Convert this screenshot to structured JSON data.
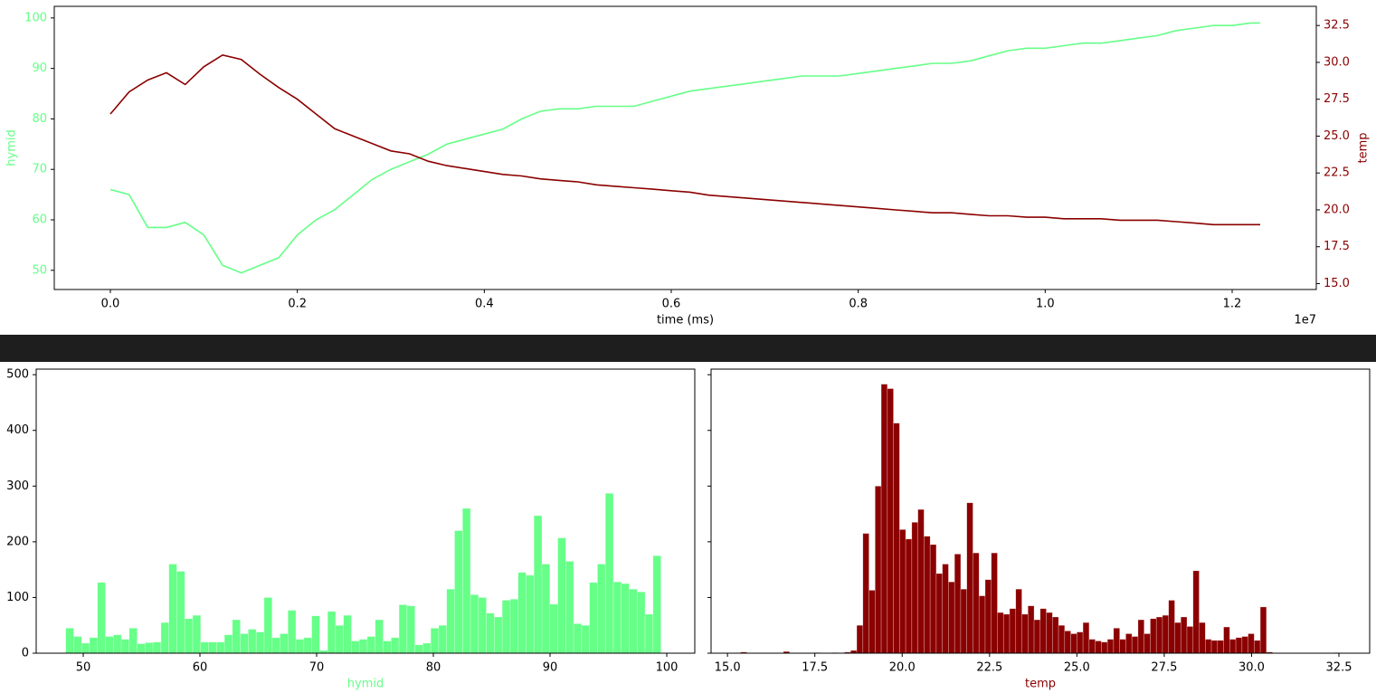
{
  "chart_data": [
    {
      "type": "line",
      "xlabel": "time (ms)",
      "ylabel": "hymid",
      "y2label": "temp",
      "x_offset_label": "1e7",
      "ycolor": "#66ff88",
      "y2color": "#8b0000",
      "x": [
        0,
        200000,
        400000,
        600000,
        800000,
        1000000,
        1200000,
        1400000,
        1600000,
        1800000,
        2000000,
        2200000,
        2400000,
        2600000,
        2800000,
        3000000,
        3200000,
        3400000,
        3600000,
        3800000,
        4000000,
        4200000,
        4400000,
        4600000,
        4800000,
        5000000,
        5200000,
        5400000,
        5600000,
        5800000,
        6000000,
        6200000,
        6400000,
        6600000,
        6800000,
        7000000,
        7200000,
        7400000,
        7600000,
        7800000,
        8000000,
        8200000,
        8400000,
        8600000,
        8800000,
        9000000,
        9200000,
        9400000,
        9600000,
        9800000,
        10000000,
        10200000,
        10400000,
        10600000,
        10800000,
        11000000,
        11200000,
        11400000,
        11600000,
        11800000,
        12000000,
        12200000,
        12300000
      ],
      "series": [
        {
          "color": "#66ff88",
          "axis": "y",
          "values": [
            66,
            65,
            58.5,
            58.5,
            59.5,
            57,
            51,
            49.5,
            51,
            52.5,
            57,
            60,
            62,
            65,
            68,
            70,
            71.5,
            73,
            75,
            76,
            77,
            78,
            80,
            81.5,
            82,
            82,
            82.5,
            82.5,
            82.5,
            83.5,
            84.5,
            85.5,
            86,
            86.5,
            87,
            87.5,
            88,
            88.5,
            88.5,
            88.5,
            89,
            89.5,
            90,
            90.5,
            91,
            91,
            91.5,
            92.5,
            93.5,
            94,
            94,
            94.5,
            95,
            95,
            95.5,
            96,
            96.5,
            97.5,
            98,
            98.5,
            98.5,
            99,
            99
          ]
        },
        {
          "color": "#8b0000",
          "axis": "y2",
          "values": [
            26.5,
            28,
            28.8,
            29.3,
            28.5,
            29.7,
            30.5,
            30.2,
            29.2,
            28.3,
            27.5,
            26.5,
            25.5,
            25,
            24.5,
            24,
            23.8,
            23.3,
            23,
            22.8,
            22.6,
            22.4,
            22.3,
            22.1,
            22,
            21.9,
            21.7,
            21.6,
            21.5,
            21.4,
            21.3,
            21.2,
            21,
            20.9,
            20.8,
            20.7,
            20.6,
            20.5,
            20.4,
            20.3,
            20.2,
            20.1,
            20,
            19.9,
            19.8,
            19.8,
            19.7,
            19.6,
            19.6,
            19.5,
            19.5,
            19.4,
            19.4,
            19.4,
            19.3,
            19.3,
            19.3,
            19.2,
            19.1,
            19,
            19,
            19,
            19
          ]
        }
      ],
      "xlim": [
        -600000,
        12900000
      ],
      "xticks": [
        {
          "value": 0,
          "label": "0.0"
        },
        {
          "value": 2000000,
          "label": "0.2"
        },
        {
          "value": 4000000,
          "label": "0.4"
        },
        {
          "value": 6000000,
          "label": "0.6"
        },
        {
          "value": 8000000,
          "label": "0.8"
        },
        {
          "value": 10000000,
          "label": "1.0"
        },
        {
          "value": 12000000,
          "label": "1.2"
        }
      ],
      "ylim": [
        46.2,
        102.3
      ],
      "yticks": [
        50,
        60,
        70,
        80,
        90,
        100
      ],
      "y2lim": [
        14.6,
        33.8
      ],
      "y2ticks": [
        {
          "value": 15,
          "label": "15.0"
        },
        {
          "value": 17.5,
          "label": "17.5"
        },
        {
          "value": 20,
          "label": "20.0"
        },
        {
          "value": 22.5,
          "label": "22.5"
        },
        {
          "value": 25,
          "label": "25.0"
        },
        {
          "value": 27.5,
          "label": "27.5"
        },
        {
          "value": 30,
          "label": "30.0"
        },
        {
          "value": 32.5,
          "label": "32.5"
        }
      ]
    },
    {
      "type": "histogram",
      "xlabel": "hymid",
      "color": "#66ff88",
      "ytick_labels": true,
      "bins": [
        48.5,
        49.18,
        49.86,
        50.54,
        51.22,
        51.9,
        52.58,
        53.26,
        53.94,
        54.62,
        55.3,
        55.98,
        56.66,
        57.34,
        58.02,
        58.7,
        59.38,
        60.06,
        60.74,
        61.42,
        62.1,
        62.78,
        63.46,
        64.14,
        64.82,
        65.5,
        66.18,
        66.86,
        67.54,
        68.22,
        68.9,
        69.58,
        70.26,
        70.94,
        71.62,
        72.3,
        72.98,
        73.66,
        74.34,
        75.02,
        75.7,
        76.38,
        77.06,
        77.74,
        78.42,
        79.1,
        79.78,
        80.46,
        81.14,
        81.82,
        82.5,
        83.18,
        83.86,
        84.54,
        85.22,
        85.9,
        86.58,
        87.26,
        87.94,
        88.62,
        89.3,
        89.98,
        90.66,
        91.34,
        92.02,
        92.7,
        93.38,
        94.06,
        94.74,
        95.42,
        96.1,
        96.78,
        97.46,
        98.14,
        98.82,
        99.5
      ],
      "values": [
        45,
        30,
        18,
        28,
        127,
        30,
        33,
        25,
        45,
        17,
        19,
        20,
        55,
        160,
        147,
        62,
        68,
        20,
        20,
        20,
        33,
        60,
        35,
        43,
        38,
        100,
        28,
        35,
        77,
        25,
        28,
        67,
        5,
        75,
        50,
        68,
        22,
        25,
        30,
        60,
        22,
        28,
        87,
        85,
        15,
        18,
        45,
        50,
        115,
        220,
        260,
        105,
        100,
        72,
        65,
        95,
        97,
        145,
        140,
        247,
        160,
        88,
        207,
        165,
        53,
        50,
        127,
        160,
        287,
        128,
        125,
        115,
        110,
        70,
        175
      ],
      "xlim": [
        45.97,
        102.4
      ],
      "xticks": [
        50,
        60,
        70,
        80,
        90,
        100
      ],
      "ylim": [
        0,
        510
      ],
      "yticks": [
        0,
        100,
        200,
        300,
        400,
        500
      ]
    },
    {
      "type": "histogram",
      "xlabel": "temp",
      "color": "#8b0000",
      "ytick_labels": false,
      "bins": [
        15.2,
        15.375,
        15.55,
        15.725,
        15.9,
        16.075,
        16.25,
        16.425,
        16.6,
        16.775,
        16.95,
        17.125,
        17.3,
        17.475,
        17.65,
        17.825,
        18,
        18.175,
        18.35,
        18.525,
        18.7,
        18.875,
        19.05,
        19.225,
        19.4,
        19.575,
        19.75,
        19.925,
        20.1,
        20.275,
        20.45,
        20.625,
        20.8,
        20.975,
        21.15,
        21.325,
        21.5,
        21.675,
        21.85,
        22.025,
        22.2,
        22.375,
        22.55,
        22.725,
        22.9,
        23.075,
        23.25,
        23.425,
        23.6,
        23.775,
        23.95,
        24.125,
        24.3,
        24.475,
        24.65,
        24.825,
        25,
        25.175,
        25.35,
        25.525,
        25.7,
        25.875,
        26.05,
        26.225,
        26.4,
        26.575,
        26.75,
        26.925,
        27.1,
        27.275,
        27.45,
        27.625,
        27.8,
        27.975,
        28.15,
        28.325,
        28.5,
        28.675,
        28.85,
        29.025,
        29.2,
        29.375,
        29.55,
        29.725,
        29.9,
        30.075,
        30.25,
        30.425,
        30.6,
        30.775,
        30.95,
        31.125,
        31.3,
        31.475,
        31.65,
        31.825,
        32,
        32.175,
        32.35,
        32.525,
        32.7
      ],
      "values": [
        0,
        2,
        0,
        0,
        0,
        0,
        0,
        0,
        3,
        0,
        0,
        0,
        0,
        1,
        0,
        0,
        1,
        0,
        2,
        5,
        50,
        215,
        113,
        300,
        483,
        475,
        413,
        222,
        205,
        235,
        258,
        210,
        195,
        143,
        160,
        128,
        178,
        115,
        270,
        180,
        103,
        132,
        180,
        73,
        70,
        80,
        115,
        70,
        85,
        60,
        80,
        73,
        65,
        50,
        40,
        35,
        38,
        55,
        25,
        22,
        20,
        25,
        45,
        25,
        35,
        30,
        60,
        35,
        62,
        65,
        68,
        95,
        55,
        65,
        48,
        148,
        55,
        25,
        23,
        23,
        47,
        25,
        28,
        30,
        35,
        23,
        83,
        2,
        0,
        0,
        0,
        0,
        0,
        0,
        0,
        0,
        0,
        0,
        1,
        0
      ],
      "xlim": [
        14.53,
        33.38
      ],
      "xticks": [
        {
          "value": 15,
          "label": "15.0"
        },
        {
          "value": 17.5,
          "label": "17.5"
        },
        {
          "value": 20,
          "label": "20.0"
        },
        {
          "value": 22.5,
          "label": "22.5"
        },
        {
          "value": 25,
          "label": "25.0"
        },
        {
          "value": 27.5,
          "label": "27.5"
        },
        {
          "value": 30,
          "label": "30.0"
        },
        {
          "value": 32.5,
          "label": "32.5"
        }
      ],
      "ylim": [
        0,
        510
      ],
      "yticks": [
        0,
        100,
        200,
        300,
        400,
        500
      ]
    }
  ]
}
